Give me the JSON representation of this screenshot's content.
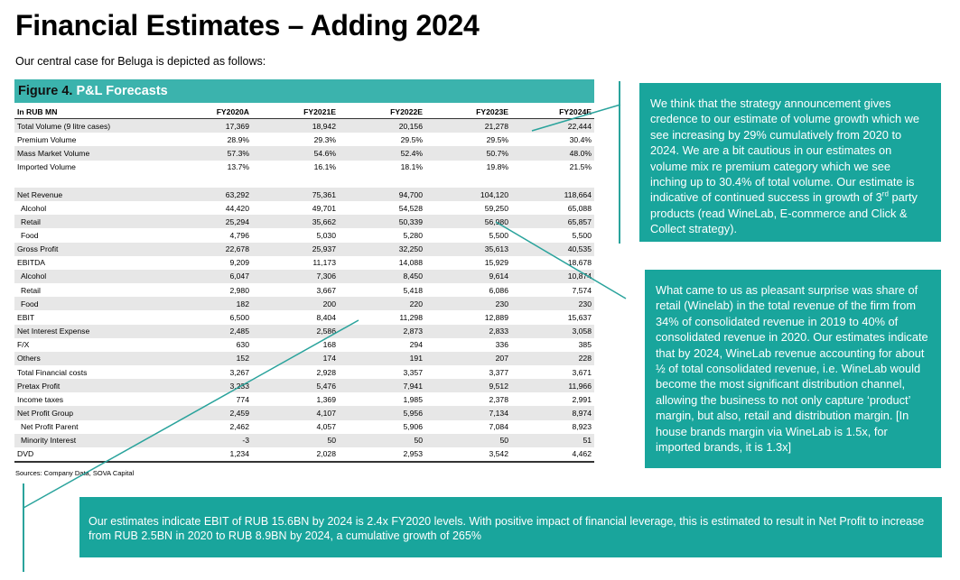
{
  "title": "Financial Estimates – Adding 2024",
  "subtitle": "Our central case for Beluga is depicted as follows:",
  "figure": {
    "label": "Figure 4.",
    "title": "P&L Forecasts"
  },
  "table": {
    "headers": [
      "In RUB MN",
      "FY2020A",
      "FY2021E",
      "FY2022E",
      "FY2023E",
      "FY2024E"
    ],
    "rows": [
      {
        "label": "Total Volume (9 litre cases)",
        "values": [
          "17,369",
          "18,942",
          "20,156",
          "21,278",
          "22,444"
        ],
        "style": "shade"
      },
      {
        "label": "Premium Volume",
        "values": [
          "28.9%",
          "29.3%",
          "29.5%",
          "29.5%",
          "30.4%"
        ],
        "style": "white"
      },
      {
        "label": "Mass Market Volume",
        "values": [
          "57.3%",
          "54.6%",
          "52.4%",
          "50.7%",
          "48.0%"
        ],
        "style": "shade"
      },
      {
        "label": "Imported Volume",
        "values": [
          "13.7%",
          "16.1%",
          "18.1%",
          "19.8%",
          "21.5%"
        ],
        "style": "white"
      },
      {
        "label": "",
        "values": [
          "",
          "",
          "",
          "",
          ""
        ],
        "style": "white"
      },
      {
        "label": "Net Revenue",
        "values": [
          "63,292",
          "75,361",
          "94,700",
          "104,120",
          "118,664"
        ],
        "style": "shade"
      },
      {
        "label": "Alcohol",
        "values": [
          "44,420",
          "49,701",
          "54,528",
          "59,250",
          "65,088"
        ],
        "style": "white",
        "indent": true
      },
      {
        "label": "Retail",
        "values": [
          "25,294",
          "35,662",
          "50,339",
          "56,980",
          "65,857"
        ],
        "style": "shade",
        "indent": true
      },
      {
        "label": "Food",
        "values": [
          "4,796",
          "5,030",
          "5,280",
          "5,500",
          "5,500"
        ],
        "style": "white",
        "indent": true
      },
      {
        "label": "Gross Profit",
        "values": [
          "22,678",
          "25,937",
          "32,250",
          "35,613",
          "40,535"
        ],
        "style": "shade"
      },
      {
        "label": "EBITDA",
        "values": [
          "9,209",
          "11,173",
          "14,088",
          "15,929",
          "18,678"
        ],
        "style": "white"
      },
      {
        "label": "Alcohol",
        "values": [
          "6,047",
          "7,306",
          "8,450",
          "9,614",
          "10,874"
        ],
        "style": "shade",
        "indent": true
      },
      {
        "label": "Retail",
        "values": [
          "2,980",
          "3,667",
          "5,418",
          "6,086",
          "7,574"
        ],
        "style": "white",
        "indent": true
      },
      {
        "label": "Food",
        "values": [
          "182",
          "200",
          "220",
          "230",
          "230"
        ],
        "style": "shade",
        "indent": true
      },
      {
        "label": "EBIT",
        "values": [
          "6,500",
          "8,404",
          "11,298",
          "12,889",
          "15,637"
        ],
        "style": "white"
      },
      {
        "label": "Net Interest Expense",
        "values": [
          "2,485",
          "2,586",
          "2,873",
          "2,833",
          "3,058"
        ],
        "style": "shade"
      },
      {
        "label": "F/X",
        "values": [
          "630",
          "168",
          "294",
          "336",
          "385"
        ],
        "style": "white"
      },
      {
        "label": "Others",
        "values": [
          "152",
          "174",
          "191",
          "207",
          "228"
        ],
        "style": "shade"
      },
      {
        "label": "Total Financial costs",
        "values": [
          "3,267",
          "2,928",
          "3,357",
          "3,377",
          "3,671"
        ],
        "style": "white"
      },
      {
        "label": "Pretax Profit",
        "values": [
          "3,233",
          "5,476",
          "7,941",
          "9,512",
          "11,966"
        ],
        "style": "shade"
      },
      {
        "label": "Income taxes",
        "values": [
          "774",
          "1,369",
          "1,985",
          "2,378",
          "2,991"
        ],
        "style": "white"
      },
      {
        "label": "Net Profit Group",
        "values": [
          "2,459",
          "4,107",
          "5,956",
          "7,134",
          "8,974"
        ],
        "style": "shade"
      },
      {
        "label": "Net Profit Parent",
        "values": [
          "2,462",
          "4,057",
          "5,906",
          "7,084",
          "8,923"
        ],
        "style": "white",
        "indent": true
      },
      {
        "label": "Minority Interest",
        "values": [
          "-3",
          "50",
          "50",
          "50",
          "51"
        ],
        "style": "shade",
        "indent": true
      },
      {
        "label": "DVD",
        "values": [
          "1,234",
          "2,028",
          "2,953",
          "3,542",
          "4,462"
        ],
        "style": "white",
        "last": true
      }
    ]
  },
  "sources": "Sources: Company Data, SOVA Capital",
  "callout1": {
    "text_a": "We think that the strategy announcement gives credence to our estimate of volume growth which we see increasing by 29% cumulatively from 2020 to 2024.  We are a bit cautious in our estimates on volume mix re premium category which we see inching up to 30.4% of total volume.  Our estimate is indicative of continued success in growth of 3",
    "sup": "rd",
    "text_b": " party products (read WineLab, E-commerce and Click & Collect strategy)."
  },
  "callout2": "What came to us as pleasant surprise was share of retail (Winelab) in the total revenue of the firm from 34% of consolidated revenue in 2019 to 40% of consolidated revenue in 2020.  Our estimates indicate that by 2024, WineLab revenue accounting for about ½ of total consolidated revenue, i.e. WineLab would become the most significant distribution channel, allowing the business to not only capture ‘product’ margin, but also, retail and distribution margin. [In house brands margin via WineLab is 1.5x, for imported brands, it is 1.3x]",
  "callout3": "Our estimates indicate EBIT of RUB 15.6BN by 2024 is 2.4x FY2020 levels.  With positive impact of financial leverage, this is estimated to result in Net Profit to increase from RUB 2.5BN in 2020 to RUB 8.9BN by 2024, a cumulative growth of 265%",
  "colors": {
    "accent": "#19a59c",
    "header": "#3bb3ad",
    "shade": "#e7e7e7"
  }
}
